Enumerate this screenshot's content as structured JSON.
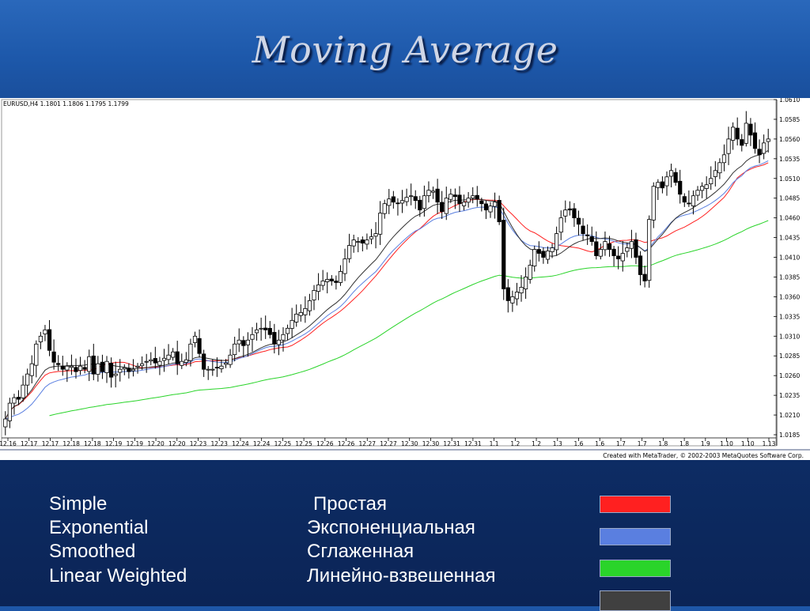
{
  "slide": {
    "title": "Moving Average"
  },
  "chart_meta": {
    "header": "EURUSD,H4  1.1801 1.1806 1.1795 1.1799",
    "footer": "Created with MetaTrader, © 2002-2003 MetaQuotes Software Corp."
  },
  "colors": {
    "simple": "#ff2020",
    "exponential": "#5a7fe0",
    "smoothed": "#2ad42a",
    "linear_weighted": "#333333",
    "candle_up_fill": "#ffffff",
    "candle_down_fill": "#000000"
  },
  "legend": {
    "items": [
      {
        "en": "Simple",
        "ru": "Простая",
        "color": "#ff2020"
      },
      {
        "en": "Exponential",
        "ru": "Экспоненциальная",
        "color": "#5a7fe0"
      },
      {
        "en": "Smoothed",
        "ru": "Сглаженная",
        "color": "#2ad42a"
      },
      {
        "en": "Linear Weighted",
        "ru": "Линейно-взвешенная",
        "color": "#404040"
      }
    ]
  },
  "chart_data": {
    "type": "candlestick",
    "title": "Moving Average",
    "grid": false,
    "ylim": [
      1.0185,
      1.061
    ],
    "y_ticks": [
      "1.0610",
      "1.0585",
      "1.0560",
      "1.0535",
      "1.0510",
      "1.0485",
      "1.0460",
      "1.0435",
      "1.0410",
      "1.0385",
      "1.0360",
      "1.0335",
      "1.0310",
      "1.0285",
      "1.0260",
      "1.0235",
      "1.0210",
      "1.0185"
    ],
    "x_ticks": [
      "12.16",
      "12.17",
      "12.17",
      "12.18",
      "12.18",
      "12.19",
      "12.19",
      "12.20",
      "12.20",
      "12.23",
      "12.23",
      "12.24",
      "12.24",
      "12.25",
      "12.25",
      "12.26",
      "12.26",
      "12.27",
      "12.27",
      "12.30",
      "12.30",
      "12.31",
      "12.31",
      "1.1",
      "1.2",
      "1.2",
      "1.3",
      "1.6",
      "1.6",
      "1.7",
      "1.7",
      "1.8",
      "1.8",
      "1.9",
      "1.10",
      "1.10",
      "1.13"
    ],
    "closes": [
      1.0205,
      1.0225,
      1.0232,
      1.023,
      1.0248,
      1.0262,
      1.0275,
      1.03,
      1.031,
      1.0318,
      1.0292,
      1.0277,
      1.0274,
      1.0268,
      1.0272,
      1.0272,
      1.0265,
      1.0272,
      1.0268,
      1.0284,
      1.0262,
      1.0275,
      1.0265,
      1.0278,
      1.0258,
      1.0262,
      1.0268,
      1.027,
      1.0265,
      1.0268,
      1.0272,
      1.0275,
      1.0278,
      1.028,
      1.0276,
      1.0278,
      1.0282,
      1.0286,
      1.029,
      1.0275,
      1.0278,
      1.028,
      1.03,
      1.031,
      1.0288,
      1.0268,
      1.0268,
      1.0268,
      1.027,
      1.0272,
      1.0276,
      1.0286,
      1.03,
      1.0305,
      1.0298,
      1.0305,
      1.0312,
      1.0318,
      1.032,
      1.0318,
      1.0312,
      1.03,
      1.0305,
      1.0312,
      1.032,
      1.033,
      1.0338,
      1.034,
      1.0345,
      1.0355,
      1.0368,
      1.0375,
      1.038,
      1.0382,
      1.038,
      1.0378,
      1.0392,
      1.0408,
      1.0425,
      1.0432,
      1.043,
      1.0428,
      1.0432,
      1.0436,
      1.044,
      1.0466,
      1.0478,
      1.0484,
      1.048,
      1.0478,
      1.0482,
      1.0486,
      1.0488,
      1.0482,
      1.047,
      1.0488,
      1.0495,
      1.0494,
      1.048,
      1.0468,
      1.0485,
      1.049,
      1.0487,
      1.0478,
      1.048,
      1.0485,
      1.0488,
      1.0484,
      1.0478,
      1.047,
      1.0475,
      1.048,
      1.0455,
      1.037,
      1.0355,
      1.036,
      1.0366,
      1.0372,
      1.0385,
      1.04,
      1.042,
      1.0415,
      1.041,
      1.0418,
      1.0422,
      1.044,
      1.046,
      1.047,
      1.047,
      1.046,
      1.0452,
      1.044,
      1.0438,
      1.043,
      1.0412,
      1.042,
      1.043,
      1.042,
      1.0412,
      1.0408,
      1.0415,
      1.0422,
      1.043,
      1.041,
      1.0388,
      1.038,
      1.0458,
      1.05,
      1.0505,
      1.0498,
      1.0512,
      1.052,
      1.0505,
      1.049,
      1.048,
      1.0478,
      1.0488,
      1.0495,
      1.05,
      1.0502,
      1.051,
      1.052,
      1.053,
      1.054,
      1.056,
      1.0575,
      1.056,
      1.0552,
      1.058,
      1.0565,
      1.0548,
      1.054,
      1.0555,
      1.056
    ],
    "series": [
      {
        "name": "Simple",
        "color": "#ff2020"
      },
      {
        "name": "Exponential",
        "color": "#5a7fe0"
      },
      {
        "name": "Smoothed",
        "color": "#2ad42a"
      },
      {
        "name": "Linear Weighted",
        "color": "#333333"
      }
    ]
  }
}
